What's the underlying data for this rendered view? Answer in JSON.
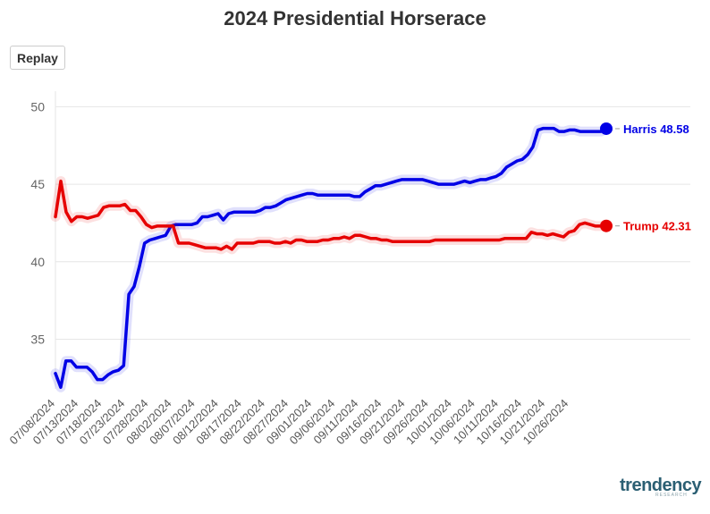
{
  "title": "2024 Presidential Horserace",
  "replay_label": "Replay",
  "logo": {
    "text": "trendency",
    "sub": "RESEARCH"
  },
  "chart_data": {
    "type": "line",
    "ylim": [
      31.8,
      51
    ],
    "yticks": [
      35,
      40,
      45,
      50
    ],
    "xticks": [
      "07/08/2024",
      "07/13/2024",
      "07/18/2024",
      "07/23/2024",
      "07/28/2024",
      "08/02/2024",
      "08/07/2024",
      "08/12/2024",
      "08/17/2024",
      "08/22/2024",
      "08/27/2024",
      "09/01/2024",
      "09/06/2024",
      "09/11/2024",
      "09/16/2024",
      "09/21/2024",
      "09/26/2024",
      "10/01/2024",
      "10/06/2024",
      "10/11/2024",
      "10/16/2024",
      "10/21/2024",
      "10/26/2024"
    ],
    "x_start": "07/08/2024",
    "grid": true,
    "series": [
      {
        "name": "Harris",
        "color": "#0000e6",
        "end_label": "Harris 48.58",
        "values": [
          32.8,
          31.9,
          33.6,
          33.6,
          33.2,
          33.2,
          33.2,
          32.9,
          32.4,
          32.4,
          32.7,
          32.9,
          33.0,
          33.3,
          37.9,
          38.4,
          39.7,
          41.2,
          41.4,
          41.5,
          41.6,
          41.7,
          42.3,
          42.4,
          42.4,
          42.4,
          42.4,
          42.5,
          42.9,
          42.9,
          43.0,
          43.1,
          42.7,
          43.1,
          43.2,
          43.2,
          43.2,
          43.2,
          43.2,
          43.3,
          43.5,
          43.5,
          43.6,
          43.8,
          44.0,
          44.1,
          44.2,
          44.3,
          44.4,
          44.4,
          44.3,
          44.3,
          44.3,
          44.3,
          44.3,
          44.3,
          44.3,
          44.2,
          44.2,
          44.5,
          44.7,
          44.9,
          44.9,
          45.0,
          45.1,
          45.2,
          45.3,
          45.3,
          45.3,
          45.3,
          45.3,
          45.2,
          45.1,
          45.0,
          45.0,
          45.0,
          45.0,
          45.1,
          45.2,
          45.1,
          45.2,
          45.3,
          45.3,
          45.4,
          45.5,
          45.7,
          46.1,
          46.3,
          46.5,
          46.6,
          46.9,
          47.4,
          48.5,
          48.6,
          48.6,
          48.6,
          48.4,
          48.4,
          48.5,
          48.5,
          48.4,
          48.4,
          48.4,
          48.4,
          48.4,
          48.58
        ]
      },
      {
        "name": "Trump",
        "color": "#e60000",
        "end_label": "Trump 42.31",
        "values": [
          42.9,
          45.2,
          43.2,
          42.6,
          42.9,
          42.9,
          42.8,
          42.9,
          43.0,
          43.5,
          43.6,
          43.6,
          43.6,
          43.7,
          43.3,
          43.3,
          42.9,
          42.4,
          42.2,
          42.3,
          42.3,
          42.3,
          42.3,
          41.2,
          41.2,
          41.2,
          41.1,
          41.0,
          40.9,
          40.9,
          40.9,
          40.8,
          41.0,
          40.8,
          41.2,
          41.2,
          41.2,
          41.2,
          41.3,
          41.3,
          41.3,
          41.2,
          41.2,
          41.3,
          41.2,
          41.4,
          41.4,
          41.3,
          41.3,
          41.3,
          41.4,
          41.4,
          41.5,
          41.5,
          41.6,
          41.5,
          41.7,
          41.7,
          41.6,
          41.5,
          41.5,
          41.4,
          41.4,
          41.3,
          41.3,
          41.3,
          41.3,
          41.3,
          41.3,
          41.3,
          41.3,
          41.4,
          41.4,
          41.4,
          41.4,
          41.4,
          41.4,
          41.4,
          41.4,
          41.4,
          41.4,
          41.4,
          41.4,
          41.4,
          41.5,
          41.5,
          41.5,
          41.5,
          41.5,
          41.9,
          41.8,
          41.8,
          41.7,
          41.8,
          41.7,
          41.6,
          41.9,
          42.0,
          42.4,
          42.5,
          42.4,
          42.3,
          42.3,
          42.31
        ]
      }
    ]
  }
}
